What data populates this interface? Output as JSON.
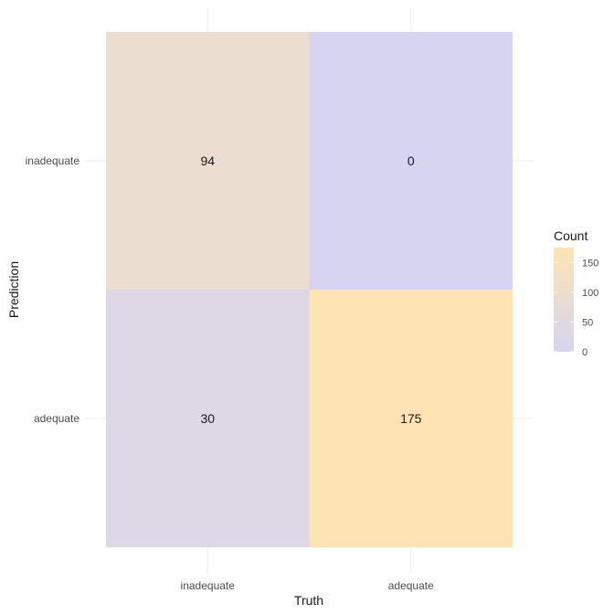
{
  "chart_data": {
    "type": "heatmap",
    "x_categories": [
      "inadequate",
      "adequate"
    ],
    "y_categories": [
      "inadequate",
      "adequate"
    ],
    "xlabel": "Truth",
    "ylabel": "Prediction",
    "cells": [
      {
        "x": "inadequate",
        "y": "inadequate",
        "value": 94
      },
      {
        "x": "adequate",
        "y": "inadequate",
        "value": 0
      },
      {
        "x": "inadequate",
        "y": "adequate",
        "value": 30
      },
      {
        "x": "adequate",
        "y": "adequate",
        "value": 175
      }
    ],
    "legend": {
      "title": "Count",
      "ticks": [
        0,
        50,
        100,
        150
      ],
      "range": [
        0,
        175
      ],
      "low_color": "#d6d4f0",
      "high_color": "#fee4b3",
      "placement": "right"
    },
    "grid": true
  }
}
